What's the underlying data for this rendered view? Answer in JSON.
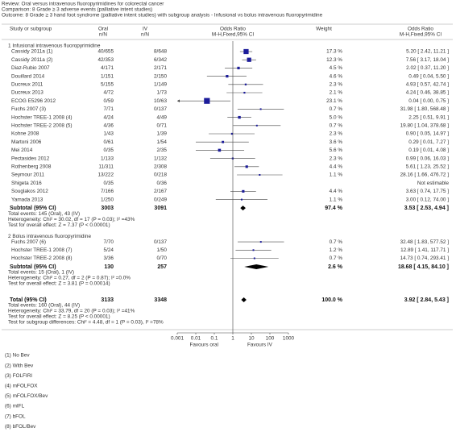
{
  "chart_data": {
    "type": "forest",
    "review": "Review:  Oral versus intravenous fluoropyrimidines for colorectal cancer",
    "comparison": "Comparison:  8 Grade ≥ 3 adverse events (palliative intent studies)",
    "outcome": "Outcome:  8 Grade ≥ 3 hand foot syndrome (palliative intent studies) with subgroup analysis - Infusional vs bolus intravenous fluoropyrimidine",
    "columns": {
      "study": "Study or subgroup",
      "oral": [
        "Oral",
        "n/N"
      ],
      "iv": [
        "IV",
        "n/N"
      ],
      "plot": [
        "Odds Ratio",
        "M-H,Fixed,95% CI"
      ],
      "weight": "Weight",
      "effect": [
        "Odds Ratio",
        "M-H,Fixed,95% CI"
      ]
    },
    "color": "#1c1c9a",
    "log": true,
    "xlim": [
      0.001,
      1000
    ],
    "xticks": [
      0.001,
      0.01,
      0.1,
      1,
      10,
      100,
      1000
    ],
    "favours_left": "Favours oral",
    "favours_right": "Favours IV",
    "groups": [
      {
        "title": "1 Infusional intravenous fluoropyrimidine",
        "studies": [
          {
            "name": "Cassidy 2011a (1)",
            "oral": "40/655",
            "iv": "8/648",
            "weight": 17.3,
            "weight_label": "17.3 %",
            "or": 5.2,
            "ci": [
              2.42,
              11.21
            ],
            "or_label": "5.20 [ 2.42, 11.21 ]"
          },
          {
            "name": "Cassidy 2011a (2)",
            "oral": "42/353",
            "iv": "6/342",
            "weight": 12.3,
            "weight_label": "12.3 %",
            "or": 7.56,
            "ci": [
              3.17,
              18.04
            ],
            "or_label": "7.56 [ 3.17, 18.04 ]"
          },
          {
            "name": "Diaz-Rubio 2007",
            "oral": "4/171",
            "iv": "2/171",
            "weight": 4.5,
            "weight_label": "4.5 %",
            "or": 2.02,
            "ci": [
              0.37,
              11.2
            ],
            "or_label": "2.02 [ 0.37, 11.20 ]"
          },
          {
            "name": "Douillard 2014",
            "oral": "1/151",
            "iv": "2/150",
            "weight": 4.6,
            "weight_label": "4.6 %",
            "or": 0.49,
            "ci": [
              0.04,
              5.5
            ],
            "or_label": "0.49 [ 0.04, 5.50 ]"
          },
          {
            "name": "Ducreux 2011",
            "oral": "5/155",
            "iv": "1/149",
            "weight": 2.3,
            "weight_label": "2.3 %",
            "or": 4.93,
            "ci": [
              0.57,
              42.74
            ],
            "or_label": "4.93 [ 0.57, 42.74 ]"
          },
          {
            "name": "Ducreux 2013",
            "oral": "4/72",
            "iv": "1/73",
            "weight": 2.1,
            "weight_label": "2.1 %",
            "or": 4.24,
            "ci": [
              0.46,
              38.85
            ],
            "or_label": "4.24 [ 0.46, 38.85 ]"
          },
          {
            "name": "ECOG E5296 2012",
            "oral": "0/59",
            "iv": "10/63",
            "weight": 23.1,
            "weight_label": "23.1 %",
            "or": 0.04,
            "ci": [
              0,
              0.75
            ],
            "or_label": "0.04 [ 0.00, 0.75 ]"
          },
          {
            "name": "Fuchs 2007 (3)",
            "oral": "7/71",
            "iv": "0/137",
            "weight": 0.7,
            "weight_label": "0.7 %",
            "or": 31.98,
            "ci": [
              1.8,
              568.48
            ],
            "or_label": "31.98 [ 1.80, 568.48 ]"
          },
          {
            "name": "Hochster TREE-1 2008 (4)",
            "oral": "4/24",
            "iv": "4/49",
            "weight": 5.0,
            "weight_label": "5.0 %",
            "or": 2.25,
            "ci": [
              0.51,
              9.91
            ],
            "or_label": "2.25 [ 0.51, 9.91 ]"
          },
          {
            "name": "Hochster TREE-2 2008 (5)",
            "oral": "4/36",
            "iv": "0/71",
            "weight": 0.7,
            "weight_label": "0.7 %",
            "or": 19.8,
            "ci": [
              1.04,
              378.68
            ],
            "or_label": "19.80 [ 1.04, 378.68 ]"
          },
          {
            "name": "Kohne 2008",
            "oral": "1/43",
            "iv": "1/39",
            "weight": 2.3,
            "weight_label": "2.3 %",
            "or": 0.9,
            "ci": [
              0.05,
              14.97
            ],
            "or_label": "0.90 [ 0.05, 14.97 ]"
          },
          {
            "name": "Martoni 2006",
            "oral": "0/61",
            "iv": "1/54",
            "weight": 3.6,
            "weight_label": "3.6 %",
            "or": 0.29,
            "ci": [
              0.01,
              7.27
            ],
            "or_label": "0.29 [ 0.01, 7.27 ]"
          },
          {
            "name": "Mei 2014",
            "oral": "0/35",
            "iv": "2/35",
            "weight": 5.6,
            "weight_label": "5.6 %",
            "or": 0.19,
            "ci": [
              0.01,
              4.08
            ],
            "or_label": "0.19 [ 0.01, 4.08 ]"
          },
          {
            "name": "Pectasides 2012",
            "oral": "1/133",
            "iv": "1/132",
            "weight": 2.3,
            "weight_label": "2.3 %",
            "or": 0.99,
            "ci": [
              0.06,
              16.03
            ],
            "or_label": "0.99 [ 0.06, 16.03 ]"
          },
          {
            "name": "Rothenberg 2008",
            "oral": "11/311",
            "iv": "2/308",
            "weight": 4.4,
            "weight_label": "4.4 %",
            "or": 5.61,
            "ci": [
              1.23,
              25.52
            ],
            "or_label": "5.61 [ 1.23, 25.52 ]"
          },
          {
            "name": "Seymour 2011",
            "oral": "13/222",
            "iv": "0/218",
            "weight": 1.1,
            "weight_label": "1.1 %",
            "or": 28.16,
            "ci": [
              1.66,
              476.72
            ],
            "or_label": "28.16 [ 1.66, 476.72 ]"
          },
          {
            "name": "Shigeta 2016",
            "oral": "0/35",
            "iv": "0/36",
            "weight": null,
            "weight_label": null,
            "or": null,
            "ci": null,
            "or_label": "Not estimable"
          },
          {
            "name": "Souglakos 2012",
            "oral": "7/166",
            "iv": "2/167",
            "weight": 4.4,
            "weight_label": "4.4 %",
            "or": 3.63,
            "ci": [
              0.74,
              17.75
            ],
            "or_label": "3.63 [ 0.74, 17.75 ]"
          },
          {
            "name": "Yamada 2013",
            "oral": "1/250",
            "iv": "0/249",
            "weight": 1.1,
            "weight_label": "1.1 %",
            "or": 3.0,
            "ci": [
              0.12,
              74.0
            ],
            "or_label": "3.00 [ 0.12, 74.00 ]"
          }
        ],
        "subtotal": {
          "name": "Subtotal (95% CI)",
          "oral": 3003,
          "iv": 3091,
          "weight_label": "97.4 %",
          "or": 3.53,
          "ci": [
            2.53,
            4.94
          ],
          "or_label": "3.53 [ 2.53, 4.94 ]"
        },
        "stats": [
          "Total events: 145 (Oral), 43 (IV)",
          "Heterogeneity: Chi² = 30.02, df = 17 (P = 0.03); I² =43%",
          "Test for overall effect: Z = 7.37 (P < 0.00001)"
        ]
      },
      {
        "title": "2 Bolus intravenous fluoropyrimidine",
        "studies": [
          {
            "name": "Fuchs 2007 (6)",
            "oral": "7/70",
            "iv": "0/137",
            "weight": 0.7,
            "weight_label": "0.7 %",
            "or": 32.48,
            "ci": [
              1.83,
              577.52
            ],
            "or_label": "32.48 [ 1.83, 577.52 ]"
          },
          {
            "name": "Hochster TREE-1 2008 (7)",
            "oral": "5/24",
            "iv": "1/50",
            "weight": 1.2,
            "weight_label": "1.2 %",
            "or": 12.89,
            "ci": [
              1.41,
              117.71
            ],
            "or_label": "12.89 [ 1.41, 117.71 ]"
          },
          {
            "name": "Hochster TREE-2 2008 (8)",
            "oral": "3/36",
            "iv": "0/70",
            "weight": 0.7,
            "weight_label": "0.7 %",
            "or": 14.73,
            "ci": [
              0.74,
              293.41
            ],
            "or_label": "14.73 [ 0.74, 293.41 ]"
          }
        ],
        "subtotal": {
          "name": "Subtotal (95% CI)",
          "oral": 130,
          "iv": 257,
          "weight_label": "2.6 %",
          "or": 18.68,
          "ci": [
            4.15,
            84.1
          ],
          "or_label": "18.68 [ 4.15, 84.10 ]"
        },
        "stats": [
          "Total events: 15 (Oral), 1 (IV)",
          "Heterogeneity: Chi² = 0.27, df = 2 (P = 0.87); I² =0.0%",
          "Test for overall effect: Z = 3.81 (P = 0.00014)"
        ]
      }
    ],
    "total": {
      "name": "Total (95% CI)",
      "oral": 3133,
      "iv": 3348,
      "weight_label": "100.0 %",
      "or": 3.92,
      "ci": [
        2.84,
        5.43
      ],
      "or_label": "3.92 [ 2.84, 5.43 ]"
    },
    "total_stats": [
      "Total events: 160 (Oral), 44 (IV)",
      "Heterogeneity: Chi² = 33.79, df = 20 (P = 0.03); I² =41%",
      "Test for overall effect: Z = 8.25 (P < 0.00001)",
      "Test for subgroup differences: Chi² = 4.48, df = 1 (P = 0.03), I² =78%"
    ],
    "footnotes": [
      "(1) No Bev",
      "(2) With Bev",
      "(3) FOLFIRI",
      "(4) mFOLFOX",
      "(5) mFOLFOX/Bev",
      "(6) mIFL",
      "(7) bFOL",
      "(8) bFOL/Bev"
    ]
  }
}
